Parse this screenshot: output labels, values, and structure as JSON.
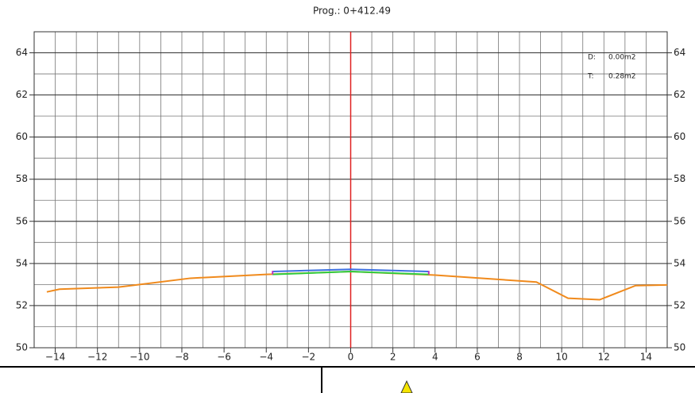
{
  "chart_data": {
    "type": "line",
    "title": "Prog.: 0+412.49",
    "xlim": [
      -15,
      15
    ],
    "ylim": [
      50,
      65
    ],
    "xticks": [
      {
        "value": -14,
        "label": "−14"
      },
      {
        "value": -12,
        "label": "−12"
      },
      {
        "value": -10,
        "label": "−10"
      },
      {
        "value": -8,
        "label": "−8"
      },
      {
        "value": -6,
        "label": "−6"
      },
      {
        "value": -4,
        "label": "−4"
      },
      {
        "value": -2,
        "label": "−2"
      },
      0,
      2,
      4,
      6,
      8,
      10,
      12,
      14
    ],
    "yticks": [
      50,
      52,
      54,
      56,
      58,
      60,
      62,
      64
    ],
    "grid": true,
    "grid_step": 1,
    "centerline": {
      "x": 0,
      "color": "#e02020"
    },
    "annotations": [
      {
        "label": "D:",
        "text": "0.00m2"
      },
      {
        "label": "T:",
        "text": "0.28m2"
      }
    ],
    "series": [
      {
        "color": "#f08a1c",
        "x": [
          -14.4,
          -13.8,
          -11,
          -10,
          -7.6,
          -4,
          0,
          4,
          8.8,
          10.3,
          11.8,
          13.5,
          15
        ],
        "values": [
          52.65,
          52.78,
          52.88,
          53.0,
          53.3,
          53.48,
          53.62,
          53.45,
          53.12,
          52.35,
          52.28,
          52.95,
          52.98
        ]
      },
      {
        "color": "#2ecc40",
        "x": [
          -3.7,
          0,
          3.7
        ],
        "values": [
          53.48,
          53.62,
          53.48
        ]
      },
      {
        "color": "#3a6fe0",
        "x": [
          -3.7,
          0,
          3.7
        ],
        "values": [
          53.62,
          53.72,
          53.62
        ]
      },
      {
        "color": "#c030c0",
        "x": [
          -3.7,
          -3.7
        ],
        "values": [
          53.48,
          53.65
        ]
      },
      {
        "color": "#c030c0",
        "x": [
          3.7,
          3.7
        ],
        "values": [
          53.48,
          53.65
        ]
      }
    ]
  }
}
